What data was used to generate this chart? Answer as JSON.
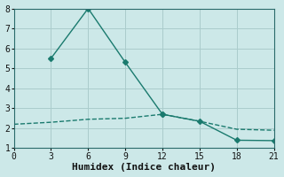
{
  "xlabel": "Humidex (Indice chaleur)",
  "background_color": "#cce8e8",
  "grid_color": "#aacccc",
  "line_color": "#1a7a6e",
  "xlim": [
    0,
    21
  ],
  "ylim": [
    1,
    8
  ],
  "xticks": [
    0,
    3,
    6,
    9,
    12,
    15,
    18,
    21
  ],
  "yticks": [
    1,
    2,
    3,
    4,
    5,
    6,
    7,
    8
  ],
  "line1_x": [
    0,
    3,
    6,
    9,
    12,
    15,
    18,
    21
  ],
  "line1_y": [
    2.2,
    2.3,
    2.45,
    2.5,
    2.7,
    2.35,
    1.95,
    1.9
  ],
  "line2_x": [
    3,
    6,
    9,
    12,
    15,
    18,
    21
  ],
  "line2_y": [
    5.5,
    8.0,
    5.3,
    2.7,
    2.35,
    1.4,
    1.38
  ],
  "marker": "D",
  "marker_size": 3,
  "line_width": 1.0,
  "font_family": "monospace",
  "xlabel_fontsize": 8,
  "tick_fontsize": 7
}
